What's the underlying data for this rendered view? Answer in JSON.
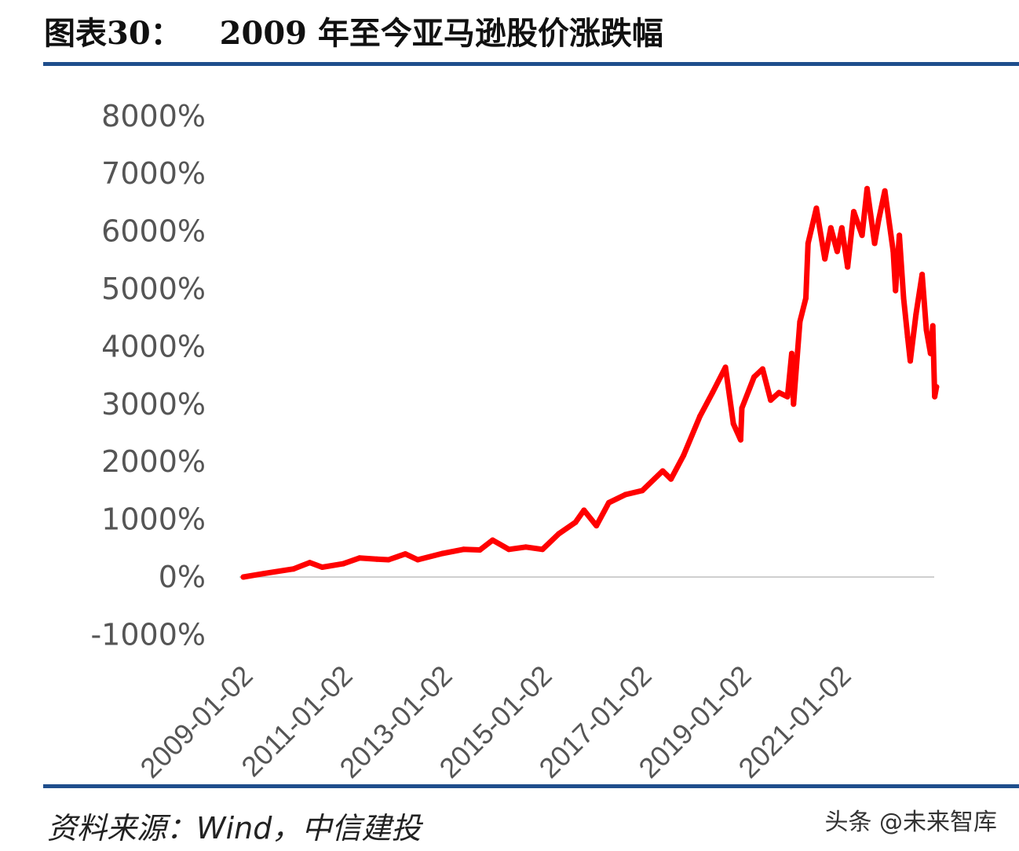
{
  "header": {
    "figure_label": "图表30：",
    "title": "2009 年至今亚马逊股价涨跌幅"
  },
  "footer": {
    "source": "资料来源：Wind，中信建投",
    "watermark": "头条 @未来智库"
  },
  "colors": {
    "series": "#ff0000",
    "rule": "#1f4e8c",
    "zero_line": "#bfbfbf",
    "tick_text": "#555555"
  },
  "chart_data": {
    "type": "line",
    "title": "",
    "xlabel": "",
    "ylabel": "",
    "ylim": [
      -1000,
      8000
    ],
    "y_ticks": [
      "-1000%",
      "0%",
      "1000%",
      "2000%",
      "3000%",
      "4000%",
      "5000%",
      "6000%",
      "7000%",
      "8000%"
    ],
    "y_tick_values": [
      -1000,
      0,
      1000,
      2000,
      3000,
      4000,
      5000,
      6000,
      7000,
      8000
    ],
    "x_ticks": [
      "2009-01-02",
      "2011-01-02",
      "2013-01-02",
      "2015-01-02",
      "2017-01-02",
      "2019-01-02",
      "2021-01-02"
    ],
    "xlim": [
      "2009-01-02",
      "2022-11-28"
    ],
    "grid": false,
    "y_unit": "%",
    "series": [
      {
        "x": [
          "2009-01-02",
          "2009-06-01",
          "2010-01-04",
          "2010-05-03",
          "2010-08-02",
          "2011-01-03",
          "2011-05-02",
          "2011-09-06",
          "2011-12-01",
          "2012-04-02",
          "2012-07-02",
          "2013-01-02",
          "2013-06-03",
          "2013-10-01",
          "2014-01-02",
          "2014-05-01",
          "2014-09-02",
          "2015-01-02",
          "2015-05-01",
          "2015-09-01",
          "2015-11-02",
          "2016-02-01",
          "2016-05-02",
          "2016-09-01",
          "2017-01-03",
          "2017-06-01",
          "2017-08-01",
          "2017-11-01",
          "2018-03-01",
          "2018-06-01",
          "2018-09-04",
          "2018-11-01",
          "2018-12-24",
          "2019-01-02",
          "2019-04-01",
          "2019-06-03",
          "2019-08-01",
          "2019-10-01",
          "2019-12-02",
          "2020-01-02",
          "2020-01-15",
          "2020-03-02",
          "2020-04-15",
          "2020-05-01",
          "2020-07-01",
          "2020-09-01",
          "2020-10-15",
          "2020-12-01",
          "2021-01-04",
          "2021-02-15",
          "2021-04-01",
          "2021-06-01",
          "2021-07-08",
          "2021-09-01",
          "2021-10-01",
          "2021-11-15",
          "2022-01-15",
          "2022-02-01",
          "2022-03-01",
          "2022-04-01",
          "2022-05-01",
          "2022-05-20",
          "2022-07-01",
          "2022-08-15",
          "2022-09-15",
          "2022-10-15",
          "2022-11-01",
          "2022-11-15",
          "2022-11-28"
        ],
        "y": [
          0,
          60,
          140,
          250,
          170,
          230,
          330,
          310,
          300,
          400,
          300,
          410,
          480,
          470,
          640,
          480,
          520,
          480,
          750,
          950,
          1160,
          890,
          1290,
          1430,
          1500,
          1840,
          1700,
          2110,
          2790,
          3200,
          3640,
          2660,
          2380,
          2930,
          3470,
          3610,
          3070,
          3200,
          3130,
          3880,
          3000,
          4430,
          4840,
          5790,
          6400,
          5520,
          6060,
          5650,
          6060,
          5380,
          6340,
          5930,
          6740,
          5790,
          6200,
          6700,
          5650,
          4970,
          5930,
          4840,
          4160,
          3750,
          4560,
          5250,
          4290,
          3880,
          4360,
          3130,
          3300
        ]
      }
    ]
  }
}
